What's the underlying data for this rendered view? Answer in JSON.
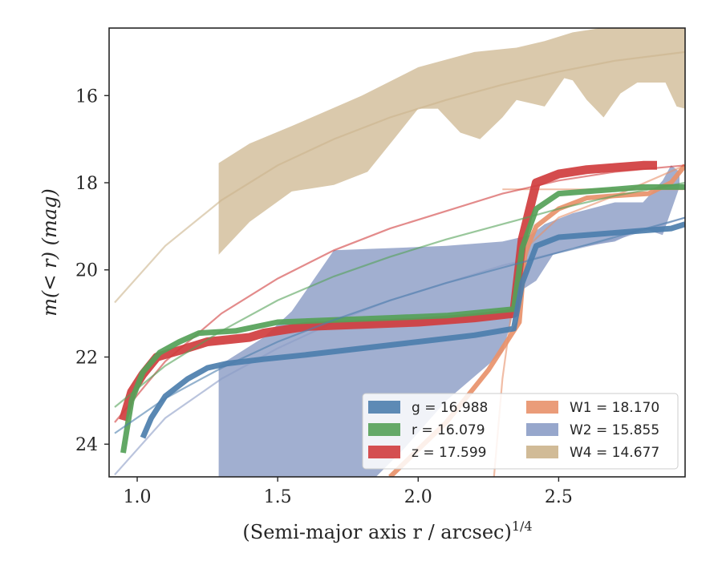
{
  "chart_data": {
    "type": "area",
    "xlabel": "(Semi-major axis r / arcsec)",
    "xlabel_exponent": "1/4",
    "ylabel": "m(< r) (mag)",
    "xlim": [
      0.9,
      2.95
    ],
    "ylim": [
      24.75,
      14.45
    ],
    "y_inverted": true,
    "grid": false,
    "legend_placement": "lower-right",
    "x_ticks": [
      {
        "value": 1.0,
        "label": "1.0"
      },
      {
        "value": 1.5,
        "label": "1.5"
      },
      {
        "value": 2.0,
        "label": "2.0"
      },
      {
        "value": 2.5,
        "label": "2.5"
      }
    ],
    "y_ticks": [
      {
        "value": 16,
        "label": "16"
      },
      {
        "value": 18,
        "label": "18"
      },
      {
        "value": 20,
        "label": "20"
      },
      {
        "value": 22,
        "label": "22"
      },
      {
        "value": 24,
        "label": "24"
      }
    ],
    "series": [
      {
        "key": "W4",
        "legend_label": "W4 = 14.677",
        "color": "#ccb48c",
        "model": [
          [
            0.92,
            20.75
          ],
          [
            1.1,
            19.45
          ],
          [
            1.3,
            18.4
          ],
          [
            1.5,
            17.6
          ],
          [
            1.7,
            17.0
          ],
          [
            1.9,
            16.5
          ],
          [
            2.1,
            16.1
          ],
          [
            2.3,
            15.75
          ],
          [
            2.5,
            15.45
          ],
          [
            2.7,
            15.2
          ],
          [
            2.95,
            15.0
          ]
        ],
        "band_upper": [
          [
            1.29,
            17.55
          ],
          [
            1.4,
            17.1
          ],
          [
            1.55,
            16.7
          ],
          [
            1.8,
            16.0
          ],
          [
            2.0,
            15.35
          ],
          [
            2.2,
            15.0
          ],
          [
            2.35,
            14.9
          ],
          [
            2.45,
            14.75
          ],
          [
            2.55,
            14.55
          ],
          [
            2.65,
            14.45
          ],
          [
            2.95,
            14.45
          ]
        ],
        "band_lower": [
          [
            1.29,
            19.65
          ],
          [
            1.4,
            18.9
          ],
          [
            1.55,
            18.2
          ],
          [
            1.7,
            18.05
          ],
          [
            1.82,
            17.75
          ],
          [
            1.92,
            16.95
          ],
          [
            2.0,
            16.3
          ],
          [
            2.07,
            16.3
          ],
          [
            2.15,
            16.85
          ],
          [
            2.22,
            17.0
          ],
          [
            2.3,
            16.5
          ],
          [
            2.35,
            16.1
          ],
          [
            2.45,
            16.25
          ],
          [
            2.52,
            15.6
          ],
          [
            2.55,
            15.65
          ],
          [
            2.6,
            16.1
          ],
          [
            2.66,
            16.5
          ],
          [
            2.72,
            15.95
          ],
          [
            2.78,
            15.7
          ],
          [
            2.88,
            15.7
          ],
          [
            2.92,
            16.25
          ],
          [
            2.95,
            16.3
          ]
        ]
      },
      {
        "key": "W2",
        "legend_label": "W2 = 15.855",
        "color": "#8c9dc6",
        "model": [
          [
            0.92,
            24.7
          ],
          [
            1.1,
            23.4
          ],
          [
            1.3,
            22.5
          ],
          [
            1.5,
            21.8
          ],
          [
            1.7,
            21.2
          ],
          [
            1.9,
            20.7
          ],
          [
            2.1,
            20.3
          ],
          [
            2.3,
            19.9
          ],
          [
            2.5,
            19.6
          ],
          [
            2.7,
            19.3
          ],
          [
            2.95,
            18.8
          ]
        ],
        "band_upper": [
          [
            1.29,
            22.2
          ],
          [
            1.45,
            21.55
          ],
          [
            1.55,
            20.95
          ],
          [
            1.7,
            19.55
          ],
          [
            1.9,
            19.5
          ],
          [
            2.1,
            19.45
          ],
          [
            2.3,
            19.35
          ],
          [
            2.4,
            19.2
          ],
          [
            2.45,
            18.95
          ],
          [
            2.55,
            18.7
          ],
          [
            2.7,
            18.45
          ],
          [
            2.8,
            18.45
          ],
          [
            2.87,
            17.95
          ],
          [
            2.9,
            17.6
          ],
          [
            2.93,
            17.75
          ]
        ],
        "band_lower": [
          [
            1.29,
            24.75
          ],
          [
            1.85,
            24.75
          ],
          [
            1.95,
            24.1
          ],
          [
            2.1,
            23.0
          ],
          [
            2.3,
            21.9
          ],
          [
            2.36,
            20.5
          ],
          [
            2.42,
            20.25
          ],
          [
            2.48,
            19.65
          ],
          [
            2.55,
            19.5
          ],
          [
            2.7,
            19.35
          ],
          [
            2.8,
            19.05
          ],
          [
            2.87,
            19.2
          ],
          [
            2.93,
            18.1
          ]
        ]
      },
      {
        "key": "W1",
        "legend_label": "W1 = 18.170",
        "color": "#e8916a",
        "model": [
          [
            2.27,
            24.75
          ],
          [
            2.3,
            22.5
          ],
          [
            2.34,
            20.6
          ],
          [
            2.4,
            19.4
          ],
          [
            2.5,
            18.8
          ],
          [
            2.7,
            18.3
          ],
          [
            2.95,
            17.6
          ]
        ],
        "model_flat": [
          [
            2.3,
            18.15
          ],
          [
            2.95,
            18.15
          ]
        ],
        "line": [
          [
            1.9,
            24.75
          ],
          [
            2.1,
            23.5
          ],
          [
            2.25,
            22.3
          ],
          [
            2.36,
            21.2
          ],
          [
            2.38,
            19.6
          ],
          [
            2.42,
            19.0
          ],
          [
            2.5,
            18.6
          ],
          [
            2.6,
            18.35
          ],
          [
            2.7,
            18.3
          ],
          [
            2.82,
            18.25
          ],
          [
            2.9,
            18.0
          ],
          [
            2.95,
            17.6
          ]
        ]
      },
      {
        "key": "z",
        "legend_label": "z = 17.599",
        "color": "#d03d3e",
        "model": [
          [
            0.92,
            23.5
          ],
          [
            1.1,
            22.1
          ],
          [
            1.3,
            21.0
          ],
          [
            1.5,
            20.2
          ],
          [
            1.7,
            19.55
          ],
          [
            1.9,
            19.05
          ],
          [
            2.1,
            18.65
          ],
          [
            2.3,
            18.25
          ],
          [
            2.5,
            17.95
          ],
          [
            2.7,
            17.75
          ],
          [
            2.95,
            17.6
          ]
        ],
        "line": [
          [
            0.95,
            23.45
          ],
          [
            0.98,
            22.8
          ],
          [
            1.02,
            22.4
          ],
          [
            1.07,
            22.0
          ],
          [
            1.15,
            21.85
          ],
          [
            1.25,
            21.65
          ],
          [
            1.4,
            21.55
          ],
          [
            1.45,
            21.45
          ],
          [
            1.6,
            21.3
          ],
          [
            1.8,
            21.25
          ],
          [
            2.0,
            21.2
          ],
          [
            2.2,
            21.1
          ],
          [
            2.34,
            21.0
          ],
          [
            2.37,
            19.3
          ],
          [
            2.42,
            18.0
          ],
          [
            2.5,
            17.8
          ],
          [
            2.6,
            17.7
          ],
          [
            2.7,
            17.65
          ],
          [
            2.8,
            17.6
          ],
          [
            2.85,
            17.6
          ]
        ]
      },
      {
        "key": "r",
        "legend_label": "r = 16.079",
        "color": "#55a158",
        "model": [
          [
            0.92,
            23.15
          ],
          [
            1.1,
            22.2
          ],
          [
            1.3,
            21.4
          ],
          [
            1.5,
            20.7
          ],
          [
            1.7,
            20.15
          ],
          [
            1.9,
            19.7
          ],
          [
            2.1,
            19.3
          ],
          [
            2.3,
            18.95
          ],
          [
            2.5,
            18.6
          ],
          [
            2.7,
            18.3
          ],
          [
            2.95,
            18.0
          ]
        ],
        "line": [
          [
            0.95,
            24.2
          ],
          [
            0.98,
            23.0
          ],
          [
            1.02,
            22.35
          ],
          [
            1.08,
            21.9
          ],
          [
            1.15,
            21.65
          ],
          [
            1.22,
            21.45
          ],
          [
            1.35,
            21.4
          ],
          [
            1.5,
            21.2
          ],
          [
            1.7,
            21.15
          ],
          [
            1.9,
            21.1
          ],
          [
            2.1,
            21.05
          ],
          [
            2.34,
            20.9
          ],
          [
            2.37,
            19.5
          ],
          [
            2.42,
            18.6
          ],
          [
            2.5,
            18.25
          ],
          [
            2.6,
            18.2
          ],
          [
            2.7,
            18.15
          ],
          [
            2.8,
            18.1
          ],
          [
            2.95,
            18.1
          ]
        ]
      },
      {
        "key": "g",
        "legend_label": "g = 16.988",
        "color": "#4c7ead",
        "model": [
          [
            0.92,
            23.75
          ],
          [
            1.1,
            22.95
          ],
          [
            1.3,
            22.25
          ],
          [
            1.5,
            21.65
          ],
          [
            1.7,
            21.15
          ],
          [
            1.9,
            20.7
          ],
          [
            2.1,
            20.3
          ],
          [
            2.3,
            19.95
          ],
          [
            2.5,
            19.6
          ],
          [
            2.7,
            19.25
          ],
          [
            2.95,
            18.8
          ]
        ],
        "line": [
          [
            1.02,
            23.85
          ],
          [
            1.05,
            23.4
          ],
          [
            1.1,
            22.9
          ],
          [
            1.18,
            22.5
          ],
          [
            1.25,
            22.25
          ],
          [
            1.32,
            22.15
          ],
          [
            1.45,
            22.05
          ],
          [
            1.6,
            21.95
          ],
          [
            1.8,
            21.8
          ],
          [
            2.0,
            21.65
          ],
          [
            2.2,
            21.5
          ],
          [
            2.34,
            21.35
          ],
          [
            2.37,
            20.3
          ],
          [
            2.42,
            19.45
          ],
          [
            2.5,
            19.25
          ],
          [
            2.6,
            19.2
          ],
          [
            2.7,
            19.15
          ],
          [
            2.8,
            19.1
          ],
          [
            2.9,
            19.05
          ],
          [
            2.95,
            18.95
          ]
        ]
      }
    ]
  }
}
